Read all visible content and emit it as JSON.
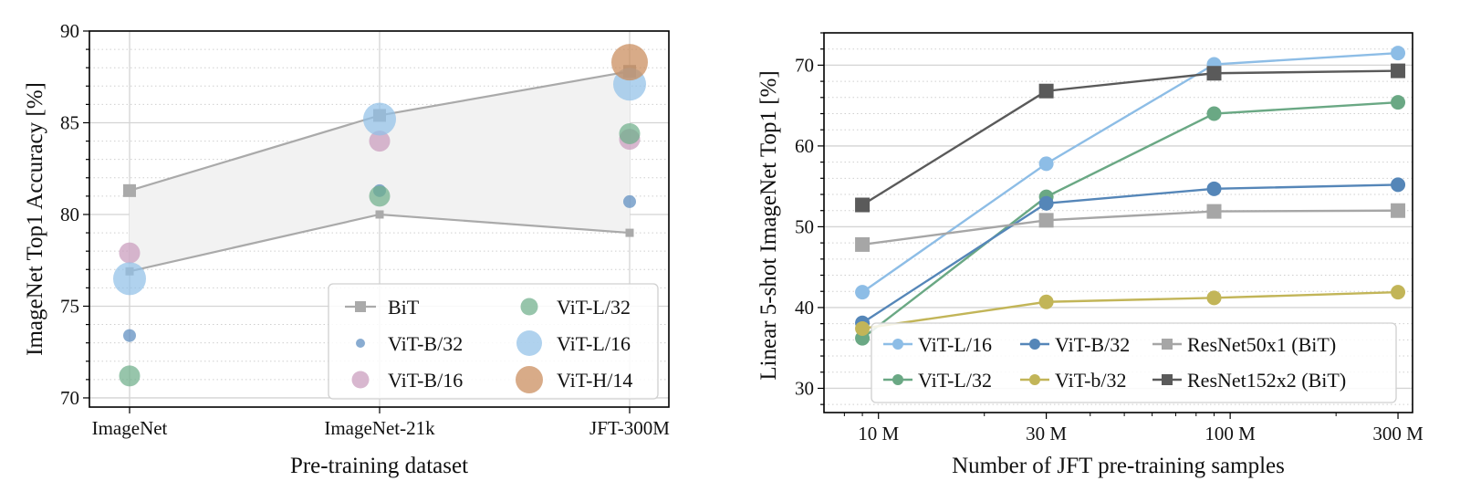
{
  "chart_data": [
    {
      "type": "scatter",
      "title": "",
      "xlabel": "Pre-training dataset",
      "ylabel": "ImageNet Top1 Accuracy [%]",
      "categories": [
        "ImageNet",
        "ImageNet-21k",
        "JFT-300M"
      ],
      "ylim": [
        69.5,
        90
      ],
      "yticks": [
        70,
        75,
        80,
        85,
        90
      ],
      "grid": true,
      "legend_position": "bottom-right",
      "bit_band": {
        "name": "BiT",
        "upper": [
          81.3,
          85.4,
          87.8
        ],
        "lower": [
          76.9,
          80.0,
          79.0
        ],
        "color": "#aaaaaa",
        "fill": "#f2f2f2"
      },
      "series": [
        {
          "name": "ViT-B/32",
          "values": [
            73.4,
            81.3,
            80.7
          ],
          "color": "#5b8cbf",
          "size": "small"
        },
        {
          "name": "ViT-B/16",
          "values": [
            77.9,
            84.0,
            84.1
          ],
          "color": "#c99bbd",
          "size": "medium"
        },
        {
          "name": "ViT-L/32",
          "values": [
            71.2,
            81.0,
            84.4
          ],
          "color": "#6fae8a",
          "size": "medium"
        },
        {
          "name": "ViT-L/16",
          "values": [
            76.5,
            85.2,
            87.1
          ],
          "color": "#92c0e8",
          "size": "large"
        },
        {
          "name": "ViT-H/14",
          "values": [
            null,
            null,
            88.3
          ],
          "color": "#c98a5a",
          "size": "xlarge"
        }
      ],
      "legend": [
        {
          "label": "BiT",
          "marker": "line-square"
        },
        {
          "label": "ViT-B/32",
          "marker": "circle"
        },
        {
          "label": "ViT-B/16",
          "marker": "circle"
        },
        {
          "label": "ViT-L/32",
          "marker": "circle"
        },
        {
          "label": "ViT-L/16",
          "marker": "circle"
        },
        {
          "label": "ViT-H/14",
          "marker": "circle"
        }
      ]
    },
    {
      "type": "line",
      "title": "",
      "xlabel": "Number of JFT pre-training samples",
      "ylabel": "Linear 5-shot ImageNet Top1 [%]",
      "x": [
        9,
        30,
        90,
        300
      ],
      "x_unit": "M",
      "xscale": "log",
      "xlim": [
        7,
        330
      ],
      "xticks": [
        10,
        30,
        100,
        300
      ],
      "xtick_labels": [
        "10 M",
        "30 M",
        "100 M",
        "300 M"
      ],
      "ylim": [
        27,
        74
      ],
      "yticks": [
        30,
        40,
        50,
        60,
        70
      ],
      "grid": true,
      "legend_position": "bottom-right",
      "series": [
        {
          "name": "ViT-L/16",
          "values": [
            41.9,
            57.8,
            70.1,
            71.5
          ],
          "color": "#8dbde6",
          "marker": "circle"
        },
        {
          "name": "ViT-L/32",
          "values": [
            36.2,
            53.7,
            64.0,
            65.4
          ],
          "color": "#6aa884",
          "marker": "circle"
        },
        {
          "name": "ViT-B/32",
          "values": [
            38.1,
            52.9,
            54.7,
            55.2
          ],
          "color": "#5586b8",
          "marker": "circle"
        },
        {
          "name": "ViT-b/32",
          "values": [
            37.4,
            40.7,
            41.2,
            41.9
          ],
          "color": "#c2b558",
          "marker": "circle"
        },
        {
          "name": "ResNet50x1 (BiT)",
          "values": [
            47.8,
            50.8,
            51.9,
            52.0
          ],
          "color": "#a6a6a6",
          "marker": "square"
        },
        {
          "name": "ResNet152x2 (BiT)",
          "values": [
            52.7,
            66.8,
            69.0,
            69.3
          ],
          "color": "#5a5a5a",
          "marker": "square"
        }
      ],
      "legend": [
        {
          "label": "ViT-L/16"
        },
        {
          "label": "ViT-B/32"
        },
        {
          "label": "ResNet50x1 (BiT)"
        },
        {
          "label": "ViT-L/32"
        },
        {
          "label": "ViT-b/32"
        },
        {
          "label": "ResNet152x2 (BiT)"
        }
      ]
    }
  ]
}
